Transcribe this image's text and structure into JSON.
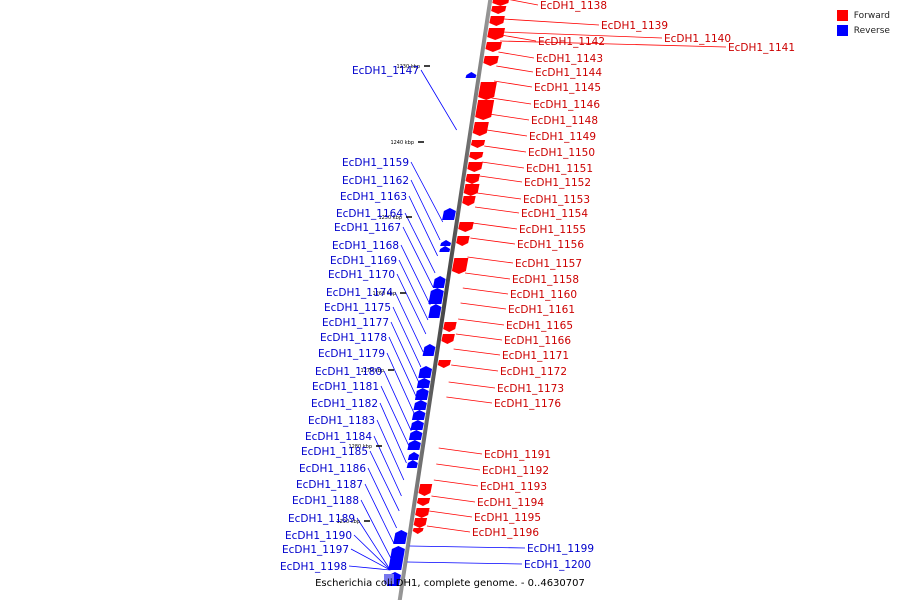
{
  "legend": {
    "forward_label": "Forward",
    "reverse_label": "Reverse",
    "forward_color": "#ff0000",
    "reverse_color": "#0000ff"
  },
  "caption": "Escherichia coli DH1, complete genome. - 0..4630707",
  "scale_ticks": [
    "1230 kbp",
    "1240 kbp",
    "1250 kbp",
    "1260 kbp",
    "1270 kbp",
    "1280 kbp",
    "1290 kbp"
  ],
  "forward_genes": [
    "EcDH1_1138",
    "EcDH1_1139",
    "EcDH1_1140",
    "EcDH1_1141",
    "EcDH1_1142",
    "EcDH1_1143",
    "EcDH1_1144",
    "EcDH1_1145",
    "EcDH1_1146",
    "EcDH1_1148",
    "EcDH1_1149",
    "EcDH1_1150",
    "EcDH1_1151",
    "EcDH1_1152",
    "EcDH1_1153",
    "EcDH1_1154",
    "EcDH1_1155",
    "EcDH1_1156",
    "EcDH1_1157",
    "EcDH1_1158",
    "EcDH1_1160",
    "EcDH1_1161",
    "EcDH1_1165",
    "EcDH1_1166",
    "EcDH1_1171",
    "EcDH1_1172",
    "EcDH1_1173",
    "EcDH1_1176",
    "EcDH1_1191",
    "EcDH1_1192",
    "EcDH1_1193",
    "EcDH1_1194",
    "EcDH1_1195",
    "EcDH1_1196"
  ],
  "reverse_genes": [
    "EcDH1_1147",
    "EcDH1_1159",
    "EcDH1_1162",
    "EcDH1_1163",
    "EcDH1_1164",
    "EcDH1_1167",
    "EcDH1_1168",
    "EcDH1_1169",
    "EcDH1_1170",
    "EcDH1_1174",
    "EcDH1_1175",
    "EcDH1_1177",
    "EcDH1_1178",
    "EcDH1_1179",
    "EcDH1_1180",
    "EcDH1_1181",
    "EcDH1_1182",
    "EcDH1_1183",
    "EcDH1_1184",
    "EcDH1_1185",
    "EcDH1_1186",
    "EcDH1_1187",
    "EcDH1_1188",
    "EcDH1_1189",
    "EcDH1_1190",
    "EcDH1_1197",
    "EcDH1_1198",
    "EcDH1_1199",
    "EcDH1_1200"
  ]
}
